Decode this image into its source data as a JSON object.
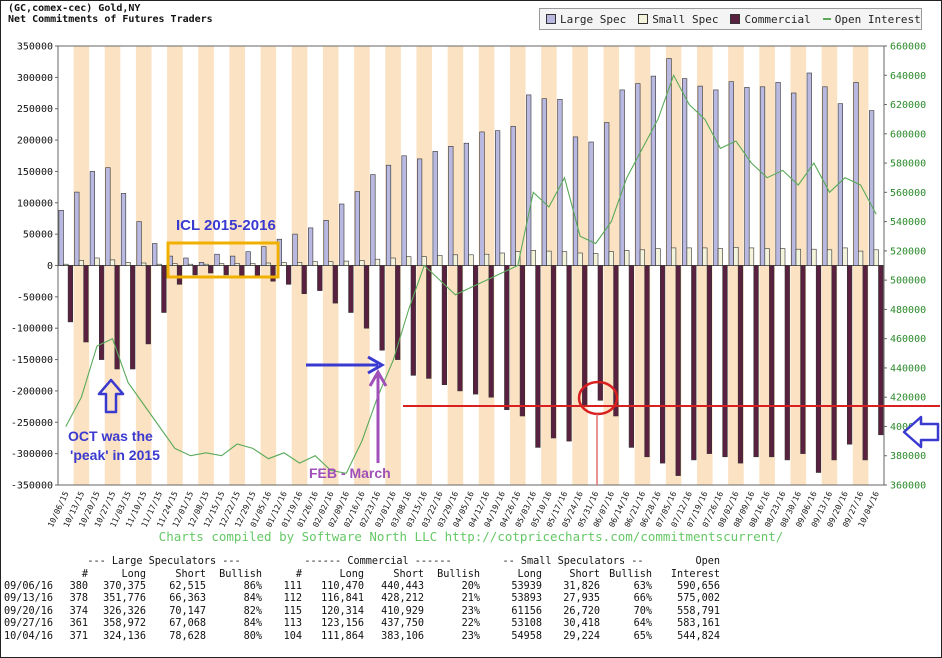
{
  "header": {
    "line1": "(GC,comex-cec) Gold,NY",
    "line2": "Net Commitments of Futures Traders"
  },
  "legend": {
    "items": [
      {
        "label": "Large Spec",
        "color": "#b8b8e0"
      },
      {
        "label": "Small Spec",
        "color": "#f4f4dc"
      },
      {
        "label": "Commercial",
        "color": "#5a2040"
      },
      {
        "label": "Open Interest",
        "color": "#5aaa5a"
      }
    ]
  },
  "credit": "Charts compiled by Software North LLC  http://cotpricecharts.com/commitmentscurrent/",
  "annotations": {
    "icl": "ICL 2015-2016",
    "oct_line1": "OCT was the",
    "oct_line2": "'peak' in 2015",
    "feb": "FEB - March"
  },
  "colors": {
    "large": "#b8b8e0",
    "small": "#f4f4dc",
    "commercial": "#5a2040",
    "oi": "#5aaa5a",
    "band": "#fbe2c2",
    "annot_blue": "#3a3ad0",
    "annot_purple": "#a050b8",
    "annot_red": "#d82020",
    "annot_orange": "#f0b000"
  },
  "chart_data": {
    "type": "bar",
    "title": "Net Commitments of Futures Traders",
    "subtitle": "(GC,comex-cec) Gold,NY",
    "ylim_left": [
      -350000,
      350000
    ],
    "ylim_right": [
      360000,
      660000
    ],
    "y_ticks_left": [
      350000,
      300000,
      250000,
      200000,
      150000,
      100000,
      50000,
      0,
      -50000,
      -100000,
      -150000,
      -200000,
      -250000,
      -300000,
      -350000
    ],
    "y_ticks_right": [
      660000,
      640000,
      620000,
      600000,
      580000,
      560000,
      540000,
      520000,
      500000,
      480000,
      460000,
      440000,
      420000,
      400000,
      380000,
      360000
    ],
    "categories": [
      "10/06/15",
      "10/13/15",
      "10/20/15",
      "10/27/15",
      "11/03/15",
      "11/10/15",
      "11/17/15",
      "11/24/15",
      "12/01/15",
      "12/08/15",
      "12/15/15",
      "12/22/15",
      "12/29/15",
      "01/05/16",
      "01/12/16",
      "01/19/16",
      "01/26/16",
      "02/02/16",
      "02/09/16",
      "02/16/16",
      "02/23/16",
      "03/01/16",
      "03/08/16",
      "03/15/16",
      "03/22/16",
      "03/29/16",
      "04/05/16",
      "04/12/16",
      "04/19/16",
      "04/26/16",
      "05/03/16",
      "05/10/16",
      "05/17/16",
      "05/24/16",
      "05/31/16",
      "06/07/16",
      "06/14/16",
      "06/21/16",
      "06/28/16",
      "07/05/16",
      "07/12/16",
      "07/19/16",
      "07/26/16",
      "08/02/16",
      "08/09/16",
      "08/16/16",
      "08/23/16",
      "08/30/16",
      "09/06/16",
      "09/13/16",
      "09/20/16",
      "09/27/16",
      "10/04/16"
    ],
    "series": [
      {
        "name": "Large Spec",
        "values": [
          88000,
          117000,
          150000,
          156000,
          115000,
          70000,
          35000,
          15000,
          12000,
          5000,
          18000,
          15000,
          22000,
          30000,
          42000,
          50000,
          60000,
          72000,
          98000,
          118000,
          145000,
          160000,
          175000,
          170000,
          182000,
          190000,
          195000,
          213000,
          215000,
          222000,
          272000,
          266000,
          265000,
          205000,
          197000,
          228000,
          280000,
          290000,
          302000,
          330000,
          298000,
          286000,
          280000,
          293000,
          284000,
          285000,
          292000,
          275000,
          307000,
          285000,
          258000,
          292000,
          247000
        ]
      },
      {
        "name": "Small Spec",
        "values": [
          2000,
          8000,
          12000,
          9000,
          5000,
          4000,
          2000,
          3000,
          2000,
          2000,
          3000,
          3000,
          3000,
          4000,
          5000,
          5000,
          6000,
          6000,
          7000,
          8000,
          10000,
          12000,
          14000,
          14000,
          16000,
          17000,
          17000,
          18000,
          20000,
          22000,
          24000,
          23000,
          22000,
          20000,
          19000,
          22000,
          24000,
          25000,
          27000,
          28000,
          28000,
          28000,
          27000,
          29000,
          28000,
          27000,
          27000,
          26000,
          26000,
          25000,
          28000,
          23000,
          25000
        ]
      },
      {
        "name": "Commercial",
        "values": [
          -90000,
          -122000,
          -150000,
          -165000,
          -165000,
          -125000,
          -75000,
          -30000,
          -15000,
          -12000,
          -15000,
          -18000,
          -20000,
          -25000,
          -30000,
          -45000,
          -40000,
          -60000,
          -75000,
          -100000,
          -135000,
          -150000,
          -175000,
          -180000,
          -190000,
          -200000,
          -205000,
          -210000,
          -230000,
          -240000,
          -290000,
          -275000,
          -280000,
          -225000,
          -215000,
          -240000,
          -290000,
          -305000,
          -315000,
          -335000,
          -310000,
          -300000,
          -305000,
          -315000,
          -305000,
          -305000,
          -310000,
          -300000,
          -330000,
          -310000,
          -285000,
          -310000,
          -270000
        ]
      }
    ],
    "open_interest": [
      400000,
      420000,
      455000,
      460000,
      430000,
      415000,
      400000,
      385000,
      380000,
      382000,
      380000,
      388000,
      385000,
      378000,
      382000,
      375000,
      380000,
      370000,
      368000,
      390000,
      420000,
      445000,
      480000,
      510000,
      500000,
      490000,
      495000,
      500000,
      505000,
      510000,
      560000,
      550000,
      570000,
      530000,
      525000,
      540000,
      570000,
      590000,
      610000,
      640000,
      620000,
      610000,
      590000,
      595000,
      580000,
      570000,
      575000,
      565000,
      580000,
      560000,
      570000,
      565000,
      545000
    ]
  },
  "table": {
    "group_headers": [
      "--- Large Speculators ---",
      "------ Commercial ------",
      "-- Small Speculators --",
      "Open"
    ],
    "columns": [
      "#",
      "Long",
      "Short",
      "Bullish",
      "#",
      "Long",
      "Short",
      "Bullish",
      "Long",
      "Short",
      "Bullish",
      "Interest"
    ],
    "rows": [
      {
        "date": "09/06/16",
        "ls_n": "380",
        "ls_long": "370,375",
        "ls_short": "62,515",
        "ls_bull": "86%",
        "c_n": "111",
        "c_long": "110,470",
        "c_short": "440,443",
        "c_bull": "20%",
        "ss_long": "53939",
        "ss_short": "31,826",
        "ss_bull": "63%",
        "oi": "590,656"
      },
      {
        "date": "09/13/16",
        "ls_n": "378",
        "ls_long": "351,776",
        "ls_short": "66,363",
        "ls_bull": "84%",
        "c_n": "112",
        "c_long": "116,841",
        "c_short": "428,212",
        "c_bull": "21%",
        "ss_long": "53893",
        "ss_short": "27,935",
        "ss_bull": "66%",
        "oi": "575,002"
      },
      {
        "date": "09/20/16",
        "ls_n": "374",
        "ls_long": "326,326",
        "ls_short": "70,147",
        "ls_bull": "82%",
        "c_n": "115",
        "c_long": "120,314",
        "c_short": "410,929",
        "c_bull": "23%",
        "ss_long": "61156",
        "ss_short": "26,720",
        "ss_bull": "70%",
        "oi": "558,791"
      },
      {
        "date": "09/27/16",
        "ls_n": "361",
        "ls_long": "358,972",
        "ls_short": "67,068",
        "ls_bull": "84%",
        "c_n": "113",
        "c_long": "123,156",
        "c_short": "437,750",
        "c_bull": "22%",
        "ss_long": "53108",
        "ss_short": "30,418",
        "ss_bull": "64%",
        "oi": "583,161"
      },
      {
        "date": "10/04/16",
        "ls_n": "371",
        "ls_long": "324,136",
        "ls_short": "78,628",
        "ls_bull": "80%",
        "c_n": "104",
        "c_long": "111,864",
        "c_short": "383,106",
        "c_bull": "23%",
        "ss_long": "54958",
        "ss_short": "29,224",
        "ss_bull": "65%",
        "oi": "544,824"
      }
    ]
  }
}
